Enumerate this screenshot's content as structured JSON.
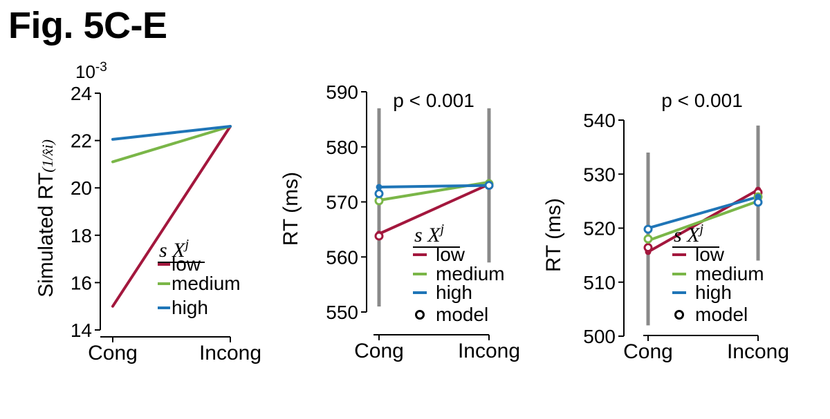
{
  "figure_title": "Fig. 5C-E",
  "legend_header": {
    "s": "s",
    "x": "X",
    "sup": "j"
  },
  "colors": {
    "low": "#a3173d",
    "medium": "#7ab648",
    "high": "#1f75b7",
    "errorbar": "#8a8a8a"
  },
  "chart_data": [
    {
      "type": "line",
      "panel": "C",
      "ylabel": "Simulated RT",
      "ylabel_suffix": "(1/x̂i)",
      "y_multiplier": "10",
      "y_multiplier_exp": "-3",
      "categories": [
        "Cong",
        "Incong"
      ],
      "ylim": [
        14,
        24
      ],
      "yticks": [
        "14",
        "16",
        "18",
        "20",
        "22",
        "24"
      ],
      "annotation": "",
      "series": [
        {
          "name": "low",
          "values": [
            15.0,
            22.6
          ]
        },
        {
          "name": "medium",
          "values": [
            21.1,
            22.6
          ]
        },
        {
          "name": "high",
          "values": [
            22.05,
            22.6
          ]
        }
      ],
      "legend": [
        "low",
        "medium",
        "high"
      ]
    },
    {
      "type": "line",
      "panel": "D",
      "ylabel": "RT (ms)",
      "categories": [
        "Cong",
        "Incong"
      ],
      "ylim": [
        550,
        590
      ],
      "yticks": [
        "550",
        "560",
        "570",
        "580",
        "590"
      ],
      "annotation": "p < 0.001",
      "errorbars": [
        [
          551,
          587
        ],
        [
          559,
          587
        ]
      ],
      "series": [
        {
          "name": "low",
          "values": [
            564.2,
            573.2
          ],
          "model": [
            563.8,
            573.0
          ]
        },
        {
          "name": "medium",
          "values": [
            570.3,
            573.6
          ],
          "model": [
            570.2,
            573.3
          ]
        },
        {
          "name": "high",
          "values": [
            572.7,
            573.0
          ],
          "model": [
            571.5,
            573.0
          ]
        }
      ],
      "legend": [
        "low",
        "medium",
        "high",
        "model"
      ]
    },
    {
      "type": "line",
      "panel": "E",
      "ylabel": "RT (ms)",
      "categories": [
        "Cong",
        "Incong"
      ],
      "ylim": [
        500,
        540
      ],
      "yticks": [
        "500",
        "510",
        "520",
        "530",
        "540"
      ],
      "annotation": "p < 0.001",
      "errorbars": [
        [
          502,
          534
        ],
        [
          514,
          539
        ]
      ],
      "series": [
        {
          "name": "low",
          "values": [
            515.6,
            527.1
          ],
          "model": [
            516.4,
            526.6
          ]
        },
        {
          "name": "medium",
          "values": [
            517.7,
            525.0
          ],
          "model": [
            518.0,
            525.8
          ]
        },
        {
          "name": "high",
          "values": [
            520.0,
            525.8
          ],
          "model": [
            519.8,
            524.8
          ]
        }
      ],
      "legend": [
        "low",
        "medium",
        "high",
        "model"
      ]
    }
  ]
}
